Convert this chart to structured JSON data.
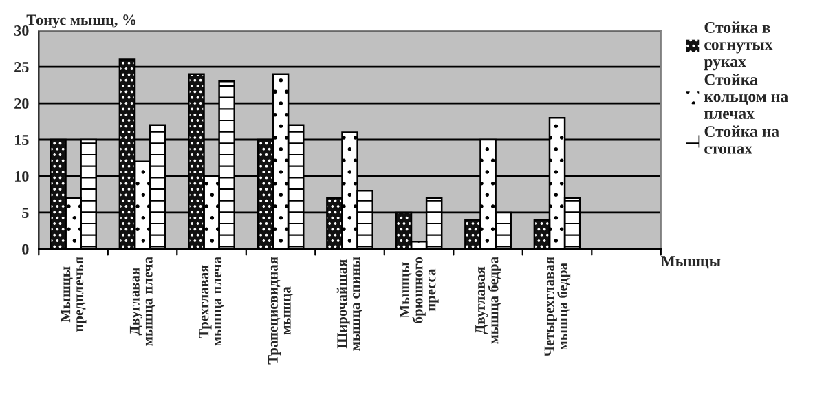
{
  "chart_data": {
    "type": "bar",
    "categories": [
      "Мышцы\nпредплечья",
      "Двуглавая\nмышца плеча",
      "Трехглавая\nмышца плеча",
      "Трапециевидная\nмышца",
      "Широчайшая\nмышца спины",
      "Мышцы\nбрюшного\nпресса",
      "Двуглавая\nмышца бедра",
      "Четырехглавая\nмышца бедра",
      null
    ],
    "series": [
      {
        "name": "Стойка в\nсогнутых\nруках",
        "color": "#111111",
        "values": [
          15,
          26,
          24,
          15,
          7,
          5,
          4,
          4,
          null
        ]
      },
      {
        "name": "Стойка\nкольцом на\nплечах",
        "color": "#ffffff",
        "values": [
          7,
          12,
          10,
          24,
          16,
          1,
          15,
          18,
          null
        ]
      },
      {
        "name": "Стойка на\nстопах",
        "color": "#ffffff",
        "values": [
          15,
          17,
          23,
          17,
          8,
          7,
          5,
          7,
          null
        ]
      }
    ],
    "xlabel": "Мышцы",
    "ylabel": "Тонус мышц, %",
    "ylim": [
      0,
      30
    ],
    "yticks": [
      0,
      5,
      10,
      15,
      20,
      25,
      30
    ],
    "grid": "y",
    "legend": "right"
  }
}
